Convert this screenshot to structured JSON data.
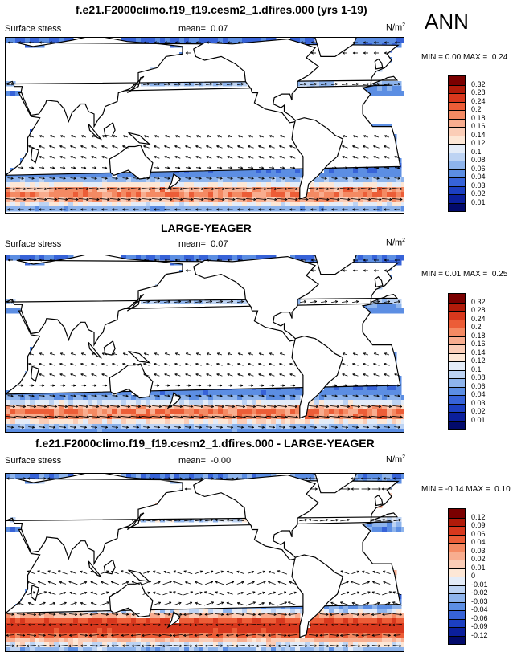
{
  "season": "ANN",
  "panels": [
    {
      "title": "f.e21.F2000climo.f19_f19.cesm2_1.dfires.000 (yrs 1-19)",
      "variable": "Surface stress",
      "mean_label": "mean=",
      "mean": "0.07",
      "units": "N/m",
      "units_exp": "2",
      "min_label": "MIN =",
      "min": "0.00",
      "max_label": "MAX =",
      "max": "0.24",
      "colorbar": [
        "0.32",
        "0.28",
        "0.24",
        "0.2",
        "0.18",
        "0.16",
        "0.14",
        "0.12",
        "0.1",
        "0.08",
        "0.06",
        "0.04",
        "0.03",
        "0.02",
        "0.01"
      ],
      "palette": [
        "#7a0000",
        "#b11b0a",
        "#d8381d",
        "#ec5d37",
        "#f48a63",
        "#f8ad8f",
        "#fbcdb7",
        "#fde7d6",
        "#e4ecf8",
        "#bdd3f3",
        "#8eb4ec",
        "#5c8ee3",
        "#3763d8",
        "#1c3fc1",
        "#0b1f9c",
        "#020a6b"
      ],
      "field": "mean"
    },
    {
      "title": "LARGE-YEAGER",
      "variable": "Surface stress",
      "mean_label": "mean=",
      "mean": "0.07",
      "units": "N/m",
      "units_exp": "2",
      "min_label": "MIN =",
      "min": "0.01",
      "max_label": "MAX =",
      "max": "0.25",
      "colorbar": [
        "0.32",
        "0.28",
        "0.24",
        "0.2",
        "0.18",
        "0.16",
        "0.14",
        "0.12",
        "0.1",
        "0.08",
        "0.06",
        "0.04",
        "0.03",
        "0.02",
        "0.01"
      ],
      "palette": [
        "#7a0000",
        "#b11b0a",
        "#d8381d",
        "#ec5d37",
        "#f48a63",
        "#f8ad8f",
        "#fbcdb7",
        "#fde7d6",
        "#e4ecf8",
        "#bdd3f3",
        "#8eb4ec",
        "#5c8ee3",
        "#3763d8",
        "#1c3fc1",
        "#0b1f9c",
        "#020a6b"
      ],
      "field": "mean"
    },
    {
      "title": "f.e21.F2000climo.f19_f19.cesm2_1.dfires.000 - LARGE-YEAGER",
      "variable": "Surface stress",
      "mean_label": "mean=",
      "mean": "-0.00",
      "units": "N/m",
      "units_exp": "2",
      "min_label": "MIN =",
      "min": "-0.14",
      "max_label": "MAX =",
      "max": "0.10",
      "colorbar": [
        "0.12",
        "0.09",
        "0.06",
        "0.04",
        "0.03",
        "0.02",
        "0.01",
        "0",
        "-0.01",
        "-0.02",
        "-0.03",
        "-0.04",
        "-0.06",
        "-0.09",
        "-0.12"
      ],
      "palette": [
        "#7a0000",
        "#b11b0a",
        "#d8381d",
        "#ec5d37",
        "#f48a63",
        "#f8ad8f",
        "#fbcdb7",
        "#fde7d6",
        "#e4ecf8",
        "#bdd3f3",
        "#8eb4ec",
        "#5c8ee3",
        "#3763d8",
        "#1c3fc1",
        "#0b1f9c",
        "#020a6b"
      ],
      "field": "diff"
    }
  ]
}
